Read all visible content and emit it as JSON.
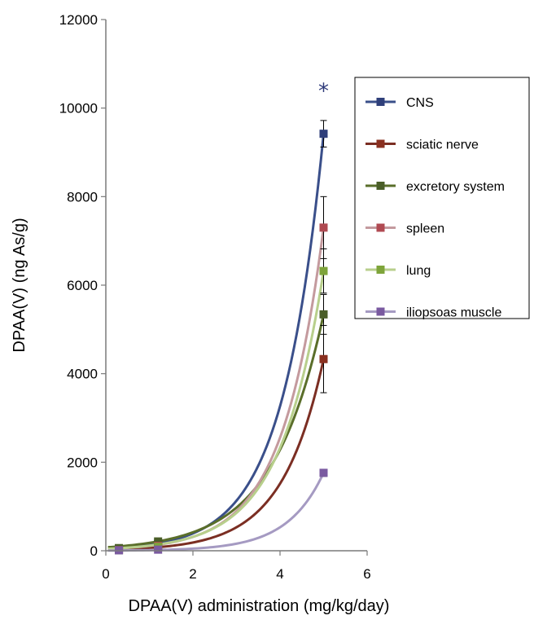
{
  "chart_data": {
    "type": "line",
    "title": "",
    "xlabel": "DPAA(V) administration (mg/kg/day)",
    "ylabel": "DPAA(V)  (ng As/g)",
    "xlim": [
      0,
      6
    ],
    "ylim": [
      0,
      12000
    ],
    "x_ticks": [
      "0",
      "2",
      "4",
      "6"
    ],
    "y_ticks": [
      "0",
      "2000",
      "4000",
      "6000",
      "8000",
      "10000",
      "12000"
    ],
    "grid": false,
    "legend_position": "right",
    "annotation": {
      "text": "*",
      "x": 5,
      "y": 10300,
      "color": "#2e3a7a"
    },
    "series": [
      {
        "name": "CNS",
        "color": "#3a4f8a",
        "marker": "#2f3f7a",
        "x": [
          0.3,
          1.2,
          5.0
        ],
        "y": [
          30,
          160,
          9420
        ],
        "error": [
          0,
          0,
          300
        ],
        "exp_k": 1.06
      },
      {
        "name": "sciatic nerve",
        "color": "#7b2e23",
        "marker": "#8a3020",
        "x": [
          0.3,
          1.2,
          5.0
        ],
        "y": [
          20,
          90,
          4330
        ],
        "error": [
          0,
          0,
          760
        ],
        "exp_k": 1.05
      },
      {
        "name": "excretory system",
        "color": "#5a6e2a",
        "marker": "#4a5e28",
        "x": [
          0.3,
          1.2,
          5.0
        ],
        "y": [
          60,
          210,
          5340
        ],
        "error": [
          0,
          0,
          450
        ],
        "exp_k": 0.85
      },
      {
        "name": "spleen",
        "color": "#c49a9e",
        "marker": "#b04a52",
        "x": [
          0.3,
          1.2,
          5.0
        ],
        "y": [
          15,
          110,
          7300
        ],
        "error": [
          0,
          0,
          700
        ],
        "exp_k": 1.05
      },
      {
        "name": "lung",
        "color": "#b8cf8c",
        "marker": "#7ea43a",
        "x": [
          0.3,
          1.2,
          5.0
        ],
        "y": [
          10,
          90,
          6320
        ],
        "error": [
          0,
          0,
          500
        ],
        "exp_k": 1.0
      },
      {
        "name": "iliopsoas muscle",
        "color": "#a59ac2",
        "marker": "#7a5aa0",
        "x": [
          0.3,
          1.2,
          5.0
        ],
        "y": [
          10,
          25,
          1760
        ],
        "error": [
          0,
          0,
          80
        ],
        "exp_k": 1.2
      }
    ]
  }
}
